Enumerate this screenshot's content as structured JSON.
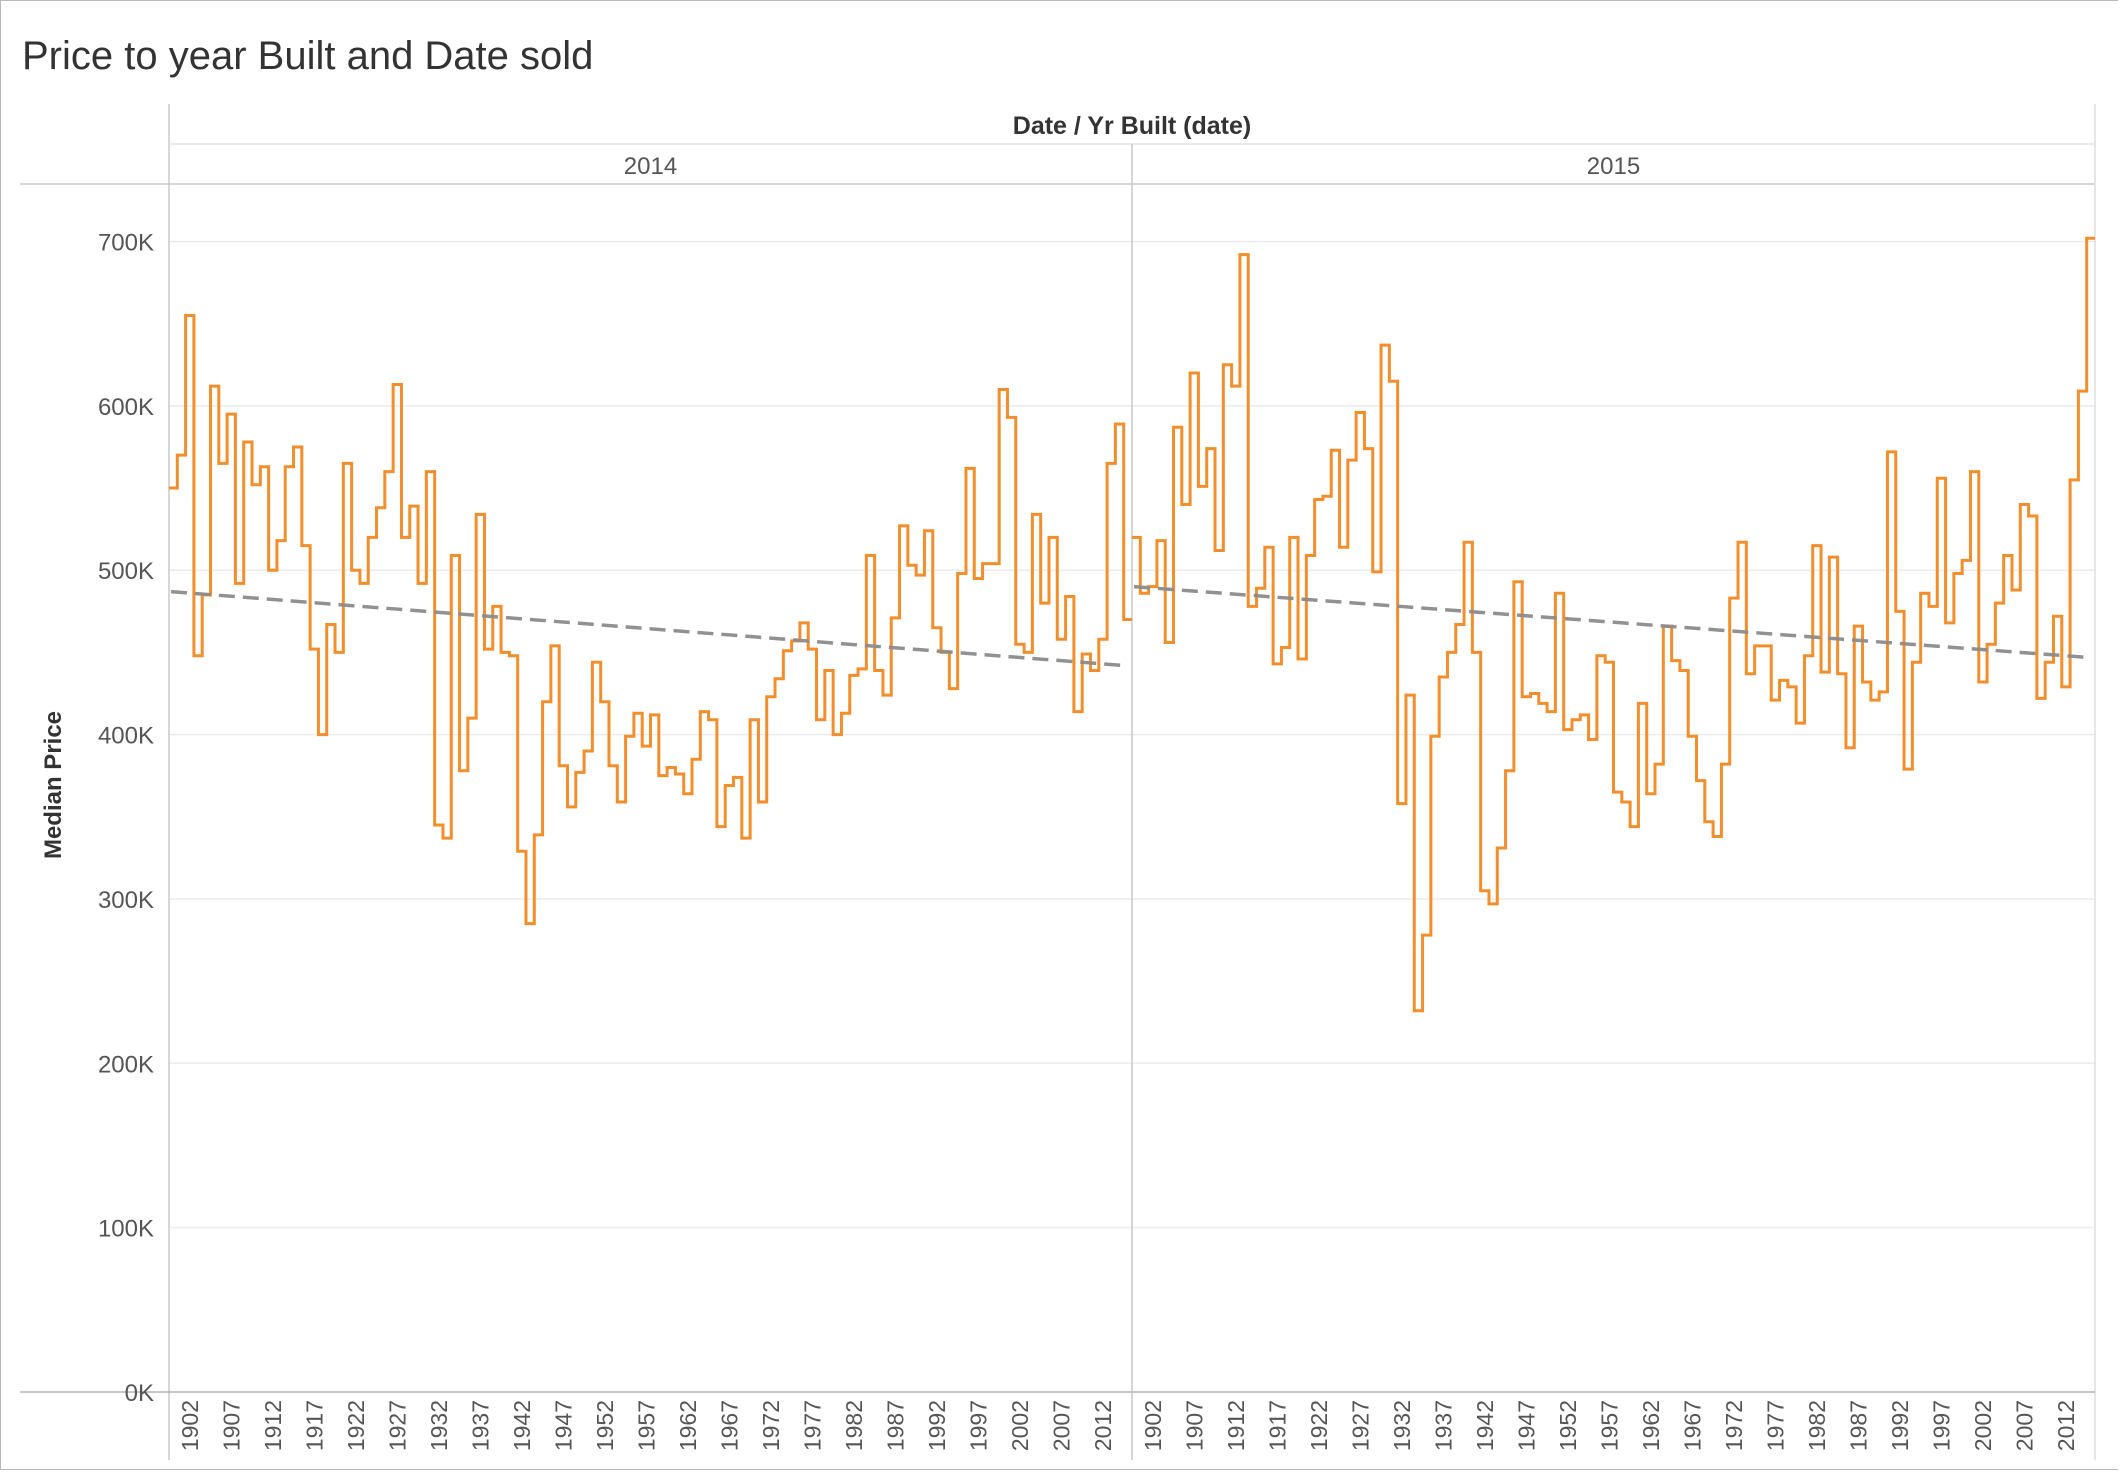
{
  "title": "Price to year Built and Date sold",
  "chart_data": {
    "type": "line",
    "title": "Price to year Built and Date sold",
    "column_header": "Date / Yr Built (date)",
    "ylabel": "Median Price",
    "ylim": [
      0,
      735000
    ],
    "yticks": [
      0,
      100000,
      200000,
      300000,
      400000,
      500000,
      600000,
      700000
    ],
    "ytick_labels": [
      "0K",
      "100K",
      "200K",
      "300K",
      "400K",
      "500K",
      "600K",
      "700K"
    ],
    "xtick_labels": [
      "1902",
      "1907",
      "1912",
      "1917",
      "1922",
      "1927",
      "1932",
      "1937",
      "1942",
      "1947",
      "1952",
      "1957",
      "1962",
      "1967",
      "1972",
      "1977",
      "1982",
      "1987",
      "1992",
      "1997",
      "2002",
      "2007",
      "2012"
    ],
    "line_style": "step",
    "colors": {
      "series": "#f28e2b",
      "trend": "#8c8c8c"
    },
    "trend_line": "dashed",
    "grid": true,
    "panels": [
      {
        "header": "2014",
        "x_start": 1900,
        "values": [
          550000,
          570000,
          655000,
          448000,
          485000,
          612000,
          565000,
          595000,
          492000,
          578000,
          552000,
          563000,
          500000,
          518000,
          563000,
          575000,
          515000,
          452000,
          400000,
          467000,
          450000,
          565000,
          500000,
          492000,
          520000,
          538000,
          560000,
          613000,
          520000,
          539000,
          492000,
          560000,
          345000,
          337000,
          509000,
          378000,
          410000,
          534000,
          452000,
          478000,
          450000,
          448000,
          329000,
          285000,
          339000,
          420000,
          454000,
          381000,
          356000,
          377000,
          390000,
          444000,
          420000,
          381000,
          359000,
          399000,
          413000,
          393000,
          412000,
          375000,
          380000,
          376000,
          364000,
          385000,
          414000,
          409000,
          344000,
          369000,
          374000,
          337000,
          409000,
          359000,
          423000,
          434000,
          451000,
          457000,
          468000,
          452000,
          409000,
          439000,
          400000,
          413000,
          436000,
          440000,
          509000,
          439000,
          424000,
          471000,
          527000,
          503000,
          497000,
          524000,
          465000,
          450000,
          428000,
          498000,
          562000,
          495000,
          504000,
          504000,
          610000,
          593000,
          455000,
          450000,
          534000,
          480000,
          520000,
          458000,
          484000,
          414000,
          449000,
          439000,
          458000,
          565000,
          589000,
          470000
        ],
        "trend": [
          487000,
          442000
        ]
      },
      {
        "header": "2015",
        "x_start": 1900,
        "values": [
          520000,
          486000,
          490000,
          518000,
          456000,
          587000,
          540000,
          620000,
          551000,
          574000,
          512000,
          625000,
          612000,
          692000,
          478000,
          489000,
          514000,
          443000,
          453000,
          520000,
          446000,
          509000,
          543000,
          545000,
          573000,
          514000,
          567000,
          596000,
          574000,
          499000,
          637000,
          615000,
          358000,
          424000,
          232000,
          278000,
          399000,
          435000,
          450000,
          467000,
          517000,
          450000,
          305000,
          297000,
          331000,
          378000,
          493000,
          423000,
          425000,
          419000,
          414000,
          486000,
          403000,
          409000,
          412000,
          397000,
          448000,
          444000,
          365000,
          359000,
          344000,
          419000,
          364000,
          382000,
          466000,
          445000,
          439000,
          399000,
          372000,
          347000,
          338000,
          382000,
          483000,
          517000,
          437000,
          454000,
          454000,
          421000,
          433000,
          429000,
          407000,
          448000,
          515000,
          438000,
          508000,
          437000,
          392000,
          466000,
          432000,
          421000,
          426000,
          572000,
          475000,
          379000,
          444000,
          486000,
          478000,
          556000,
          468000,
          498000,
          506000,
          560000,
          432000,
          455000,
          480000,
          509000,
          488000,
          540000,
          533000,
          422000,
          444000,
          472000,
          429000,
          555000,
          609000,
          702000
        ],
        "trend": [
          490000,
          447000
        ]
      }
    ]
  }
}
